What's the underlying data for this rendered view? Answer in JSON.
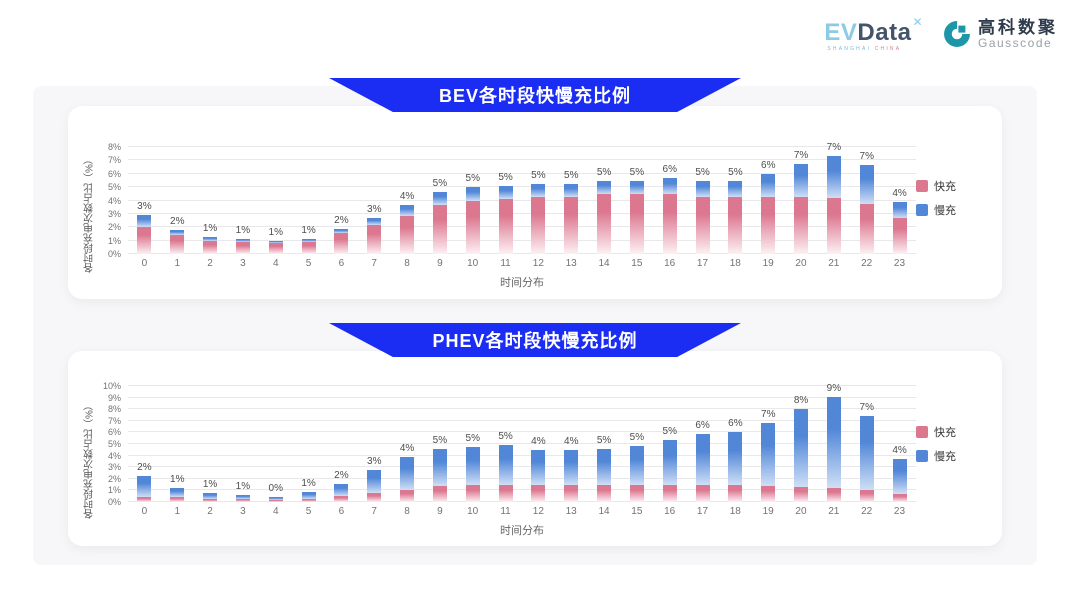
{
  "logo": {
    "evdata_ev": "EV",
    "evdata_data": "Data",
    "evdata_sup": "✕",
    "evdata_sub_shanghai": "SHANGHAI",
    "evdata_sub_china": "CHINA",
    "gausscode_cn": "高科数聚",
    "gausscode_en": "Gausscode"
  },
  "colors": {
    "banner_blue": "#1b2cf3",
    "gausscode_teal": "#1d96a8",
    "board_bg": "#f7f7f9",
    "card_bg": "#ffffff",
    "fast_pink": "#dc7790",
    "slow_blue": "#5287d8"
  },
  "chart_data": [
    {
      "type": "bar",
      "stacked": true,
      "title": "BEV各时段快慢充比例",
      "xlabel": "时间分布",
      "ylabel": "各时段充电次数占比（%）",
      "categories": [
        "0",
        "1",
        "2",
        "3",
        "4",
        "5",
        "6",
        "7",
        "8",
        "9",
        "10",
        "11",
        "12",
        "13",
        "14",
        "15",
        "16",
        "17",
        "18",
        "19",
        "20",
        "21",
        "22",
        "23"
      ],
      "series": [
        {
          "name": "快充",
          "color": "#dc7790",
          "fade": "#fdf1f4",
          "values": [
            2.0,
            1.4,
            1.0,
            0.9,
            0.8,
            0.9,
            1.6,
            2.2,
            2.85,
            3.7,
            4.0,
            4.1,
            4.25,
            4.3,
            4.5,
            4.45,
            4.5,
            4.3,
            4.25,
            4.25,
            4.3,
            4.2,
            3.75,
            2.7
          ]
        },
        {
          "name": "慢充",
          "color": "#5287d8",
          "fade": "#cfdff6",
          "values": [
            0.95,
            0.4,
            0.3,
            0.25,
            0.15,
            0.25,
            0.3,
            0.5,
            0.8,
            0.9,
            1.0,
            1.0,
            0.95,
            0.95,
            0.95,
            1.0,
            1.15,
            1.15,
            1.2,
            1.75,
            2.4,
            3.1,
            2.9,
            1.2
          ]
        }
      ],
      "total_labels": [
        "3%",
        "2%",
        "1%",
        "1%",
        "1%",
        "1%",
        "2%",
        "3%",
        "4%",
        "5%",
        "5%",
        "5%",
        "5%",
        "5%",
        "5%",
        "5%",
        "6%",
        "5%",
        "5%",
        "6%",
        "7%",
        "7%",
        "7%",
        "4%"
      ],
      "ylim": [
        0,
        8
      ],
      "ytick_step": 1,
      "ytick_suffix": "%",
      "grid": true,
      "legend": [
        "快充",
        "慢充"
      ],
      "legend_position": "right"
    },
    {
      "type": "bar",
      "stacked": true,
      "title": "PHEV各时段快慢充比例",
      "xlabel": "时间分布",
      "ylabel": "各时段充电次数占比（%）",
      "categories": [
        "0",
        "1",
        "2",
        "3",
        "4",
        "5",
        "6",
        "7",
        "8",
        "9",
        "10",
        "11",
        "12",
        "13",
        "14",
        "15",
        "16",
        "17",
        "18",
        "19",
        "20",
        "21",
        "22",
        "23"
      ],
      "series": [
        {
          "name": "快充",
          "color": "#dc7790",
          "fade": "#fdf1f4",
          "values": [
            0.45,
            0.4,
            0.3,
            0.25,
            0.2,
            0.3,
            0.55,
            0.8,
            1.0,
            1.4,
            1.45,
            1.5,
            1.45,
            1.45,
            1.45,
            1.5,
            1.5,
            1.45,
            1.45,
            1.4,
            1.3,
            1.2,
            1.0,
            0.7
          ]
        },
        {
          "name": "慢充",
          "color": "#5287d8",
          "fade": "#cfdff6",
          "values": [
            1.8,
            0.8,
            0.5,
            0.35,
            0.25,
            0.55,
            1.0,
            1.95,
            2.9,
            3.15,
            3.3,
            3.45,
            3.0,
            3.0,
            3.1,
            3.35,
            3.85,
            4.45,
            4.55,
            5.4,
            6.7,
            7.85,
            6.45,
            3.0
          ]
        }
      ],
      "total_labels": [
        "2%",
        "1%",
        "1%",
        "1%",
        "0%",
        "1%",
        "2%",
        "3%",
        "4%",
        "5%",
        "5%",
        "5%",
        "4%",
        "4%",
        "5%",
        "5%",
        "5%",
        "6%",
        "6%",
        "7%",
        "8%",
        "9%",
        "7%",
        "4%"
      ],
      "ylim": [
        0,
        10
      ],
      "ytick_step": 1,
      "ytick_suffix": "%",
      "grid": true,
      "legend": [
        "快充",
        "慢充"
      ],
      "legend_position": "right"
    }
  ]
}
